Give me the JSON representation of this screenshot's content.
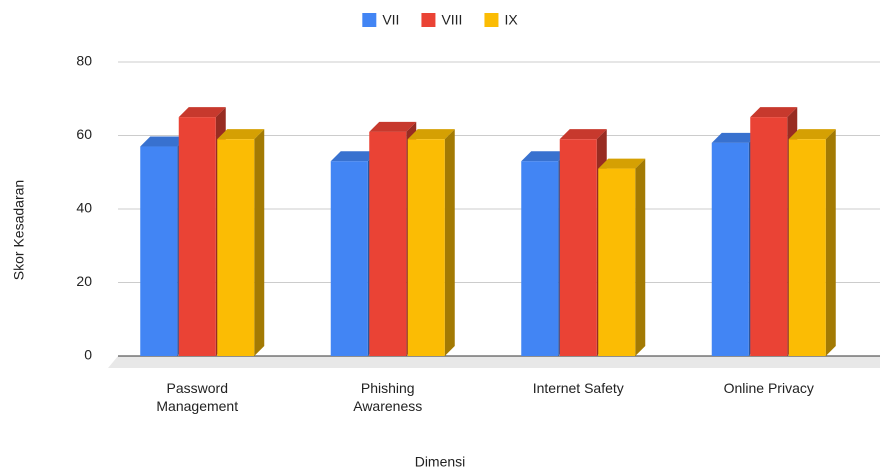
{
  "chart_data": {
    "type": "bar3d",
    "categories": [
      "Password Management",
      "Phishing Awareness",
      "Internet Safety",
      "Online Privacy"
    ],
    "series": [
      {
        "name": "VII",
        "color": "#4285f4",
        "values": [
          57,
          53,
          53,
          58
        ]
      },
      {
        "name": "VIII",
        "color": "#ea4335",
        "values": [
          65,
          61,
          59,
          65
        ]
      },
      {
        "name": "IX",
        "color": "#fbbc04",
        "values": [
          59,
          59,
          51,
          59
        ]
      }
    ],
    "ylim": [
      0,
      80
    ],
    "yticks": [
      0,
      20,
      40,
      60,
      80
    ],
    "grid": true,
    "legend": "top",
    "xlabel": "Dimensi",
    "ylabel": "Skor Kesadaran"
  }
}
